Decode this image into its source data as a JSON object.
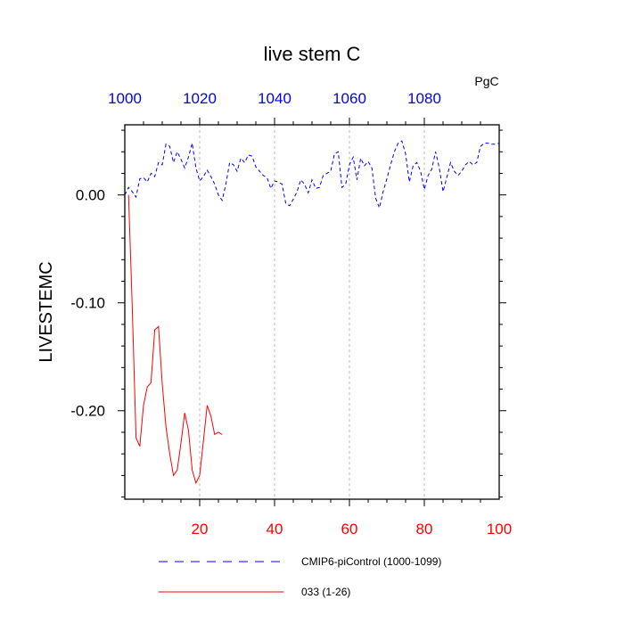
{
  "chart_data": {
    "type": "line",
    "title": "live stem C",
    "units_label": "PgC",
    "ylabel": "LIVESTEMC",
    "xlabel": "",
    "xlim": [
      0,
      100
    ],
    "ylim": [
      -0.282,
      0.065
    ],
    "x_ticks": [
      20,
      40,
      60,
      80,
      100
    ],
    "x_tick_labels": [
      "20",
      "40",
      "60",
      "80",
      "100"
    ],
    "top_ticks": [
      0,
      20,
      40,
      60,
      80
    ],
    "top_tick_labels": [
      "1000",
      "1020",
      "1040",
      "1060",
      "1080"
    ],
    "y_ticks": [
      0.0,
      -0.1,
      -0.2
    ],
    "y_tick_labels": [
      "0.00",
      "-0.10",
      "-0.20"
    ],
    "grid": "vertical dashed at major x ticks",
    "legend_position": "bottom",
    "colors": {
      "bottom_axis": "#ff0000",
      "top_axis": "#0000ff",
      "control": "#0000ff",
      "run033": "#ff0000",
      "grid": "#bbbbbb"
    },
    "series": [
      {
        "name": "CMIP6-piControl (1000-1099)",
        "style": "dashed",
        "x": [
          0,
          1,
          2,
          3,
          4,
          5,
          6,
          7,
          8,
          9,
          10,
          11,
          12,
          13,
          14,
          15,
          16,
          17,
          18,
          19,
          20,
          21,
          22,
          23,
          24,
          25,
          26,
          27,
          28,
          29,
          30,
          31,
          32,
          33,
          34,
          35,
          36,
          37,
          38,
          39,
          40,
          41,
          42,
          43,
          44,
          45,
          46,
          47,
          48,
          49,
          50,
          51,
          52,
          53,
          54,
          55,
          56,
          57,
          58,
          59,
          60,
          61,
          62,
          63,
          64,
          65,
          66,
          67,
          68,
          69,
          70,
          71,
          72,
          73,
          74,
          75,
          76,
          77,
          78,
          79,
          80,
          81,
          82,
          83,
          84,
          85,
          86,
          87,
          88,
          89,
          90,
          91,
          92,
          93,
          94,
          95,
          96,
          97,
          98,
          99,
          100
        ],
        "values": [
          0.0,
          0.007,
          0.003,
          -0.002,
          0.015,
          0.016,
          0.012,
          0.02,
          0.017,
          0.03,
          0.028,
          0.047,
          0.045,
          0.03,
          0.04,
          0.033,
          0.025,
          0.035,
          0.048,
          0.025,
          0.013,
          0.017,
          0.023,
          0.017,
          0.01,
          0.0,
          -0.005,
          0.01,
          0.03,
          0.028,
          0.022,
          0.034,
          0.03,
          0.037,
          0.036,
          0.026,
          0.022,
          0.018,
          0.016,
          0.006,
          0.013,
          0.012,
          0.01,
          -0.008,
          -0.01,
          -0.004,
          0.003,
          0.014,
          0.01,
          0.002,
          0.014,
          0.006,
          0.007,
          0.018,
          0.02,
          0.022,
          0.038,
          0.04,
          0.007,
          0.01,
          0.028,
          0.035,
          0.014,
          0.034,
          0.027,
          0.031,
          0.025,
          -0.003,
          -0.012,
          0.003,
          0.015,
          0.028,
          0.04,
          0.048,
          0.05,
          0.038,
          0.012,
          0.027,
          0.03,
          0.022,
          0.005,
          0.018,
          0.024,
          0.04,
          0.025,
          0.003,
          0.016,
          0.03,
          0.022,
          0.018,
          0.022,
          0.028,
          0.031,
          0.028,
          0.03,
          0.045,
          0.048,
          0.048,
          0.047,
          0.047,
          0.048
        ]
      },
      {
        "name": "033 (1-26)",
        "style": "solid",
        "x": [
          1,
          2,
          3,
          4,
          5,
          6,
          7,
          8,
          9,
          10,
          11,
          12,
          13,
          14,
          15,
          16,
          17,
          18,
          19,
          20,
          21,
          22,
          23,
          24,
          25,
          26
        ],
        "values": [
          0.0,
          -0.105,
          -0.225,
          -0.233,
          -0.195,
          -0.178,
          -0.174,
          -0.125,
          -0.122,
          -0.175,
          -0.215,
          -0.24,
          -0.26,
          -0.255,
          -0.23,
          -0.202,
          -0.218,
          -0.255,
          -0.267,
          -0.26,
          -0.228,
          -0.195,
          -0.205,
          -0.222,
          -0.22,
          -0.222
        ]
      }
    ]
  }
}
